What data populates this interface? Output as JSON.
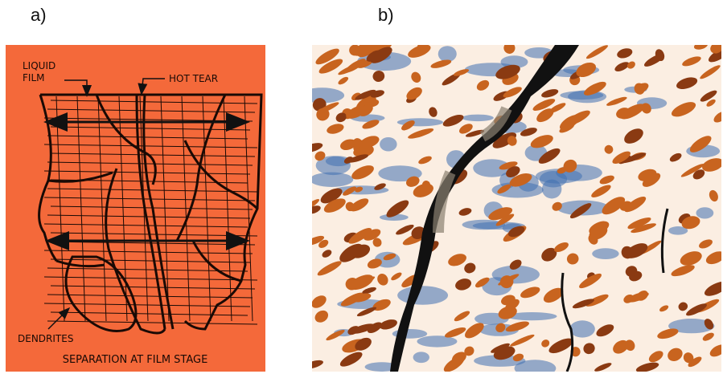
{
  "panels": [
    {
      "label": "a)",
      "annotations": {
        "liquid_film": [
          "LIQUID",
          "FILM"
        ],
        "hot_tear": "HOT TEAR",
        "dendrites": "DENDRITES",
        "caption": "SEPARATION AT FILM STAGE"
      }
    },
    {
      "label": "b)"
    }
  ]
}
